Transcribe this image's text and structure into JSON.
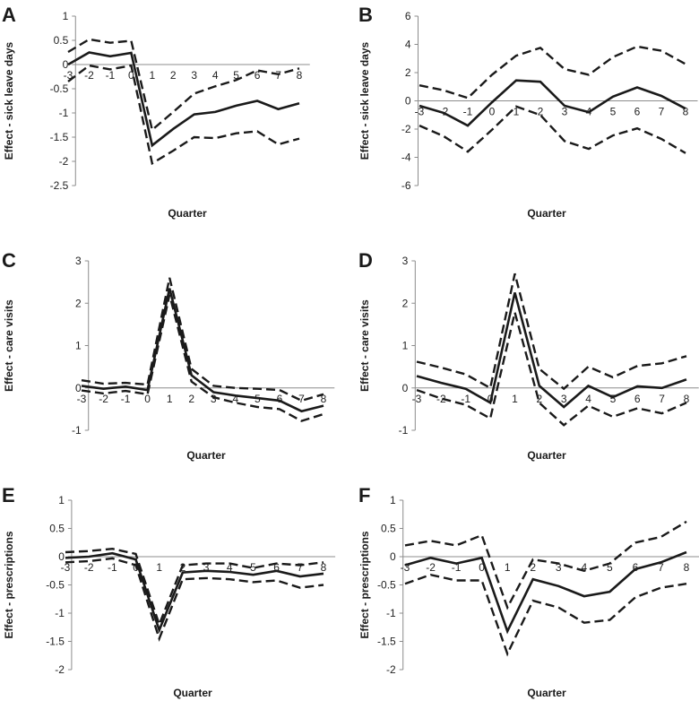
{
  "chart_data": [
    {
      "type": "line",
      "panel": "A",
      "ylabel": "Effect - sick leave days",
      "xlabel": "Quarter",
      "categories": [
        "-3",
        "-2",
        "-1",
        "0",
        "1",
        "2",
        "3",
        "4",
        "5",
        "6",
        "7",
        "8"
      ],
      "ylim": [
        -2.5,
        1
      ],
      "yticks": [
        1,
        0.5,
        0,
        -0.5,
        -1,
        -1.5,
        -2,
        -2.5
      ],
      "ytick_labels": [
        "1",
        "0.5",
        "0",
        "-0.5",
        "-1",
        "-1.5",
        "-2",
        "-2.5"
      ],
      "series": [
        {
          "name": "estimate",
          "style": "solid",
          "values": [
            0,
            0.25,
            0.17,
            0.24,
            -1.67,
            -1.33,
            -1.03,
            -0.98,
            -0.85,
            -0.75,
            -0.92,
            -0.8
          ]
        },
        {
          "name": "upper",
          "style": "dashed",
          "values": [
            0.26,
            0.52,
            0.45,
            0.49,
            -1.35,
            -0.98,
            -0.6,
            -0.45,
            -0.32,
            -0.12,
            -0.2,
            -0.08
          ]
        },
        {
          "name": "lower",
          "style": "dashed",
          "values": [
            -0.35,
            -0.02,
            -0.1,
            -0.02,
            -2.04,
            -1.78,
            -1.5,
            -1.52,
            -1.42,
            -1.38,
            -1.65,
            -1.53
          ]
        }
      ]
    },
    {
      "type": "line",
      "panel": "B",
      "ylabel": "Effect - sick leave days",
      "xlabel": "Quarter",
      "categories": [
        "-3",
        "-2",
        "-1",
        "0",
        "1",
        "2",
        "3",
        "4",
        "5",
        "6",
        "7",
        "8"
      ],
      "ylim": [
        -6,
        6
      ],
      "yticks": [
        6,
        4,
        2,
        0,
        -2,
        -4,
        -6
      ],
      "ytick_labels": [
        "6",
        "4",
        "2",
        "0",
        "-2",
        "-4",
        "-6"
      ],
      "series": [
        {
          "name": "estimate",
          "style": "solid",
          "values": [
            -0.35,
            -0.85,
            -1.75,
            -0.1,
            1.45,
            1.35,
            -0.35,
            -0.8,
            0.3,
            0.95,
            0.35,
            -0.55
          ]
        },
        {
          "name": "upper",
          "style": "dashed",
          "values": [
            1.1,
            0.75,
            0.2,
            1.85,
            3.2,
            3.75,
            2.25,
            1.85,
            3.1,
            3.85,
            3.55,
            2.6
          ]
        },
        {
          "name": "lower",
          "style": "dashed",
          "values": [
            -1.75,
            -2.5,
            -3.6,
            -2.05,
            -0.4,
            -1.0,
            -2.85,
            -3.4,
            -2.45,
            -1.95,
            -2.7,
            -3.7
          ]
        }
      ]
    },
    {
      "type": "line",
      "panel": "C",
      "ylabel": "Effect - care visits",
      "xlabel": "Quarter",
      "categories": [
        "-3",
        "-2",
        "-1",
        "0",
        "1",
        "2",
        "3",
        "4",
        "5",
        "6",
        "7",
        "8"
      ],
      "ylim": [
        -1,
        3
      ],
      "yticks": [
        3,
        2,
        1,
        0,
        -1
      ],
      "ytick_labels": [
        "3",
        "2",
        "1",
        "0",
        "-1"
      ],
      "series": [
        {
          "name": "estimate",
          "style": "solid",
          "values": [
            0.05,
            -0.02,
            0.03,
            -0.05,
            2.35,
            0.3,
            -0.1,
            -0.18,
            -0.24,
            -0.3,
            -0.55,
            -0.42
          ]
        },
        {
          "name": "upper",
          "style": "dashed",
          "values": [
            0.18,
            0.1,
            0.12,
            0.08,
            2.6,
            0.45,
            0.05,
            0.0,
            -0.02,
            -0.05,
            -0.3,
            -0.15
          ]
        },
        {
          "name": "lower",
          "style": "dashed",
          "values": [
            -0.06,
            -0.13,
            -0.07,
            -0.15,
            2.2,
            0.15,
            -0.22,
            -0.35,
            -0.45,
            -0.5,
            -0.78,
            -0.62
          ]
        }
      ]
    },
    {
      "type": "line",
      "panel": "D",
      "ylabel": "Effect - care visits",
      "xlabel": "Quarter",
      "categories": [
        "-3",
        "-2",
        "-1",
        "0",
        "1",
        "2",
        "3",
        "4",
        "5",
        "6",
        "7",
        "8"
      ],
      "ylim": [
        -1,
        3
      ],
      "yticks": [
        3,
        2,
        1,
        0,
        -1
      ],
      "ytick_labels": [
        "3",
        "2",
        "1",
        "0",
        "-1"
      ],
      "series": [
        {
          "name": "estimate",
          "style": "solid",
          "values": [
            0.28,
            0.12,
            -0.02,
            -0.35,
            2.25,
            0.05,
            -0.45,
            0.05,
            -0.22,
            0.04,
            0.0,
            0.2
          ]
        },
        {
          "name": "upper",
          "style": "dashed",
          "values": [
            0.62,
            0.48,
            0.32,
            0.0,
            2.7,
            0.45,
            -0.02,
            0.5,
            0.25,
            0.52,
            0.58,
            0.75
          ]
        },
        {
          "name": "lower",
          "style": "dashed",
          "values": [
            -0.05,
            -0.25,
            -0.4,
            -0.72,
            1.78,
            -0.35,
            -0.88,
            -0.42,
            -0.68,
            -0.48,
            -0.6,
            -0.35
          ]
        }
      ]
    },
    {
      "type": "line",
      "panel": "E",
      "ylabel": "Effect - prescriptions",
      "xlabel": "Quarter",
      "categories": [
        "-3",
        "-2",
        "-1",
        "0",
        "1",
        "2",
        "3",
        "4",
        "5",
        "6",
        "7",
        "8"
      ],
      "ylim": [
        -2,
        1
      ],
      "yticks": [
        1,
        0.5,
        0,
        -0.5,
        -1,
        -1.5,
        -2
      ],
      "ytick_labels": [
        "1",
        "0.5",
        "0",
        "-0.5",
        "-1",
        "-1.5",
        "-2"
      ],
      "series": [
        {
          "name": "estimate",
          "style": "solid",
          "values": [
            -0.02,
            0.0,
            0.06,
            -0.05,
            -1.3,
            -0.28,
            -0.25,
            -0.27,
            -0.32,
            -0.25,
            -0.35,
            -0.3
          ]
        },
        {
          "name": "upper",
          "style": "dashed",
          "values": [
            0.08,
            0.1,
            0.14,
            0.05,
            -1.2,
            -0.15,
            -0.12,
            -0.12,
            -0.2,
            -0.12,
            -0.15,
            -0.1
          ]
        },
        {
          "name": "lower",
          "style": "dashed",
          "values": [
            -0.1,
            -0.08,
            -0.03,
            -0.15,
            -1.45,
            -0.4,
            -0.38,
            -0.4,
            -0.45,
            -0.42,
            -0.55,
            -0.5
          ]
        }
      ]
    },
    {
      "type": "line",
      "panel": "F",
      "ylabel": "Effect - prescriptions",
      "xlabel": "Quarter",
      "categories": [
        "-3",
        "-2",
        "-1",
        "0",
        "1",
        "2",
        "3",
        "4",
        "5",
        "6",
        "7",
        "8"
      ],
      "ylim": [
        -2,
        1
      ],
      "yticks": [
        1,
        0.5,
        0,
        -0.5,
        -1,
        -1.5,
        -2
      ],
      "ytick_labels": [
        "1",
        "0.5",
        "0",
        "-0.5",
        "-1",
        "-1.5",
        "-2"
      ],
      "series": [
        {
          "name": "estimate",
          "style": "solid",
          "values": [
            -0.15,
            -0.02,
            -0.12,
            -0.02,
            -1.32,
            -0.4,
            -0.52,
            -0.7,
            -0.62,
            -0.22,
            -0.1,
            0.08
          ]
        },
        {
          "name": "upper",
          "style": "dashed",
          "values": [
            0.2,
            0.28,
            0.2,
            0.38,
            -0.9,
            -0.05,
            -0.12,
            -0.25,
            -0.12,
            0.25,
            0.35,
            0.62
          ]
        },
        {
          "name": "lower",
          "style": "dashed",
          "values": [
            -0.48,
            -0.32,
            -0.42,
            -0.42,
            -1.72,
            -0.78,
            -0.9,
            -1.17,
            -1.12,
            -0.72,
            -0.55,
            -0.48
          ]
        }
      ]
    }
  ]
}
